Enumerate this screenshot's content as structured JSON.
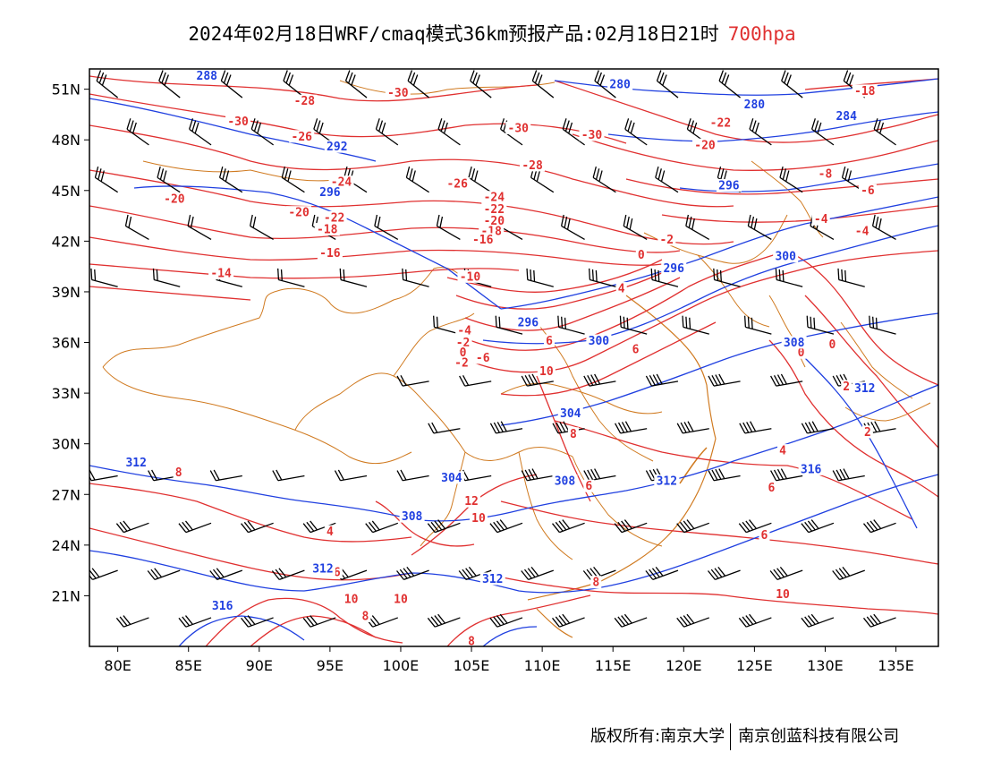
{
  "title": {
    "main": "2024年02月18日WRF/cmaq模式36km预报产品:02月18日21时",
    "level": "700hpa"
  },
  "colors": {
    "temperature": "#e03030",
    "geopotential": "#2040e0",
    "boundary": "#d07a20",
    "wind": "#000000"
  },
  "axes": {
    "lat_labels": [
      "51N",
      "48N",
      "45N",
      "42N",
      "39N",
      "36N",
      "33N",
      "30N",
      "27N",
      "24N",
      "21N"
    ],
    "lon_labels": [
      "80E",
      "85E",
      "90E",
      "95E",
      "100E",
      "105E",
      "110E",
      "115E",
      "120E",
      "125E",
      "130E",
      "135E"
    ]
  },
  "contour_labels": {
    "temperature": [
      {
        "text": "-30",
        "lon": 88.5,
        "lat": 49.0
      },
      {
        "text": "-28",
        "lon": 93.2,
        "lat": 50.2
      },
      {
        "text": "-30",
        "lon": 99.8,
        "lat": 50.7
      },
      {
        "text": "-26",
        "lon": 93.0,
        "lat": 48.1
      },
      {
        "text": "-24",
        "lon": 95.8,
        "lat": 45.4
      },
      {
        "text": "-20",
        "lon": 84.0,
        "lat": 44.4
      },
      {
        "text": "-20",
        "lon": 92.8,
        "lat": 43.6
      },
      {
        "text": "-22",
        "lon": 95.3,
        "lat": 43.3
      },
      {
        "text": "-18",
        "lon": 94.8,
        "lat": 42.6
      },
      {
        "text": "-16",
        "lon": 95.0,
        "lat": 41.2
      },
      {
        "text": "-14",
        "lon": 87.3,
        "lat": 40.0
      },
      {
        "text": "-30",
        "lon": 108.3,
        "lat": 48.6
      },
      {
        "text": "-30",
        "lon": 113.5,
        "lat": 48.2
      },
      {
        "text": "-28",
        "lon": 109.3,
        "lat": 46.4
      },
      {
        "text": "-26",
        "lon": 104.0,
        "lat": 45.3
      },
      {
        "text": "-24",
        "lon": 106.6,
        "lat": 44.5
      },
      {
        "text": "-22",
        "lon": 106.6,
        "lat": 43.8
      },
      {
        "text": "-20",
        "lon": 106.6,
        "lat": 43.1
      },
      {
        "text": "-18",
        "lon": 106.4,
        "lat": 42.5
      },
      {
        "text": "-16",
        "lon": 105.8,
        "lat": 42.0
      },
      {
        "text": "-10",
        "lon": 104.9,
        "lat": 39.8
      },
      {
        "text": "-4",
        "lon": 104.5,
        "lat": 36.6
      },
      {
        "text": "-2",
        "lon": 104.4,
        "lat": 35.9
      },
      {
        "text": "0",
        "lon": 104.4,
        "lat": 35.3
      },
      {
        "text": "-2",
        "lon": 104.3,
        "lat": 34.7
      },
      {
        "text": "-6",
        "lon": 105.8,
        "lat": 35.0
      },
      {
        "text": "-18",
        "lon": 132.8,
        "lat": 50.8
      },
      {
        "text": "-22",
        "lon": 122.6,
        "lat": 48.9
      },
      {
        "text": "-20",
        "lon": 121.5,
        "lat": 47.6
      },
      {
        "text": "-8",
        "lon": 130.0,
        "lat": 45.9
      },
      {
        "text": "-6",
        "lon": 133.0,
        "lat": 44.9
      },
      {
        "text": "-4",
        "lon": 129.7,
        "lat": 43.2
      },
      {
        "text": "-2",
        "lon": 118.8,
        "lat": 42.0
      },
      {
        "text": "0",
        "lon": 117.0,
        "lat": 41.1
      },
      {
        "text": "-4",
        "lon": 132.6,
        "lat": 42.5
      },
      {
        "text": "4",
        "lon": 115.6,
        "lat": 39.1
      },
      {
        "text": "6",
        "lon": 110.5,
        "lat": 36.0
      },
      {
        "text": "6",
        "lon": 116.6,
        "lat": 35.5
      },
      {
        "text": "10",
        "lon": 110.3,
        "lat": 34.2
      },
      {
        "text": "0",
        "lon": 130.5,
        "lat": 35.8
      },
      {
        "text": "0",
        "lon": 128.3,
        "lat": 35.3
      },
      {
        "text": "2",
        "lon": 131.5,
        "lat": 33.3
      },
      {
        "text": "2",
        "lon": 133.0,
        "lat": 30.6
      },
      {
        "text": "8",
        "lon": 112.2,
        "lat": 30.5
      },
      {
        "text": "4",
        "lon": 127.0,
        "lat": 29.5
      },
      {
        "text": "6",
        "lon": 126.2,
        "lat": 27.3
      },
      {
        "text": "6",
        "lon": 113.3,
        "lat": 27.4
      },
      {
        "text": "8",
        "lon": 84.3,
        "lat": 28.2
      },
      {
        "text": "12",
        "lon": 105.0,
        "lat": 26.5
      },
      {
        "text": "10",
        "lon": 105.5,
        "lat": 25.5
      },
      {
        "text": "4",
        "lon": 95.0,
        "lat": 24.7
      },
      {
        "text": "6",
        "lon": 95.5,
        "lat": 22.3
      },
      {
        "text": "8",
        "lon": 113.8,
        "lat": 21.7
      },
      {
        "text": "6",
        "lon": 125.7,
        "lat": 24.5
      },
      {
        "text": "10",
        "lon": 96.5,
        "lat": 20.7
      },
      {
        "text": "8",
        "lon": 97.5,
        "lat": 19.7
      },
      {
        "text": "10",
        "lon": 100.0,
        "lat": 20.7
      },
      {
        "text": "10",
        "lon": 127.0,
        "lat": 21.0
      },
      {
        "text": "8",
        "lon": 105.0,
        "lat": 18.2
      }
    ],
    "geopotential": [
      {
        "text": "288",
        "lon": 86.3,
        "lat": 51.7
      },
      {
        "text": "280",
        "lon": 115.5,
        "lat": 51.2
      },
      {
        "text": "280",
        "lon": 125.0,
        "lat": 50.0
      },
      {
        "text": "284",
        "lon": 131.5,
        "lat": 49.3
      },
      {
        "text": "292",
        "lon": 95.5,
        "lat": 47.5
      },
      {
        "text": "296",
        "lon": 95.0,
        "lat": 44.8
      },
      {
        "text": "296",
        "lon": 123.2,
        "lat": 45.2
      },
      {
        "text": "300",
        "lon": 127.2,
        "lat": 41.0
      },
      {
        "text": "296",
        "lon": 119.3,
        "lat": 40.3
      },
      {
        "text": "296",
        "lon": 109.0,
        "lat": 37.1
      },
      {
        "text": "300",
        "lon": 114.0,
        "lat": 36.0
      },
      {
        "text": "308",
        "lon": 127.8,
        "lat": 35.9
      },
      {
        "text": "304",
        "lon": 112.0,
        "lat": 31.7
      },
      {
        "text": "312",
        "lon": 132.8,
        "lat": 33.2
      },
      {
        "text": "312",
        "lon": 81.3,
        "lat": 28.8
      },
      {
        "text": "304",
        "lon": 103.6,
        "lat": 27.9
      },
      {
        "text": "308",
        "lon": 111.6,
        "lat": 27.7
      },
      {
        "text": "312",
        "lon": 118.8,
        "lat": 27.7
      },
      {
        "text": "316",
        "lon": 129.0,
        "lat": 28.4
      },
      {
        "text": "308",
        "lon": 100.8,
        "lat": 25.6
      },
      {
        "text": "312",
        "lon": 94.5,
        "lat": 22.5
      },
      {
        "text": "312",
        "lon": 106.5,
        "lat": 21.9
      },
      {
        "text": "316",
        "lon": 87.4,
        "lat": 20.3
      }
    ]
  },
  "footer": {
    "left": "版权所有:南京大学",
    "right": "南京创蓝科技有限公司"
  }
}
